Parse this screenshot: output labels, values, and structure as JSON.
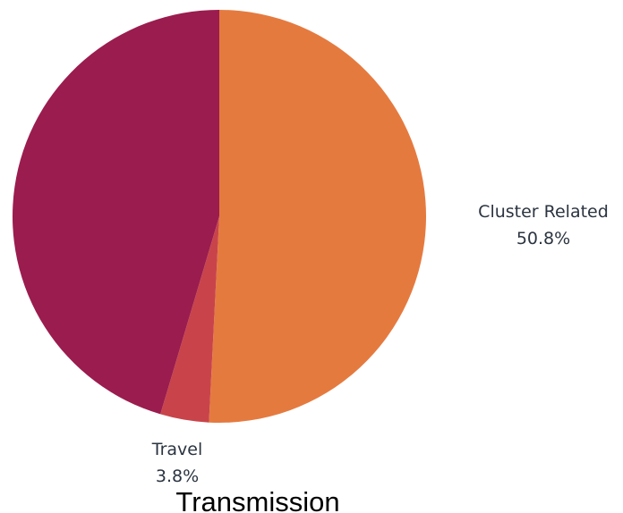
{
  "chart_data": {
    "type": "pie",
    "title": "Transmission",
    "slices": [
      {
        "name": "Cluster Related",
        "value": 50.8,
        "label": "50.8%",
        "color": "#e57a3f",
        "show_label": true
      },
      {
        "name": "Travel",
        "value": 3.8,
        "label": "3.8%",
        "color": "#c8444a",
        "show_label": true
      },
      {
        "name": "",
        "value": 45.4,
        "label": "",
        "color": "#9b1c4e",
        "show_label": false
      }
    ],
    "start_angle_deg": 0,
    "direction": "clockwise",
    "legend": "none"
  }
}
